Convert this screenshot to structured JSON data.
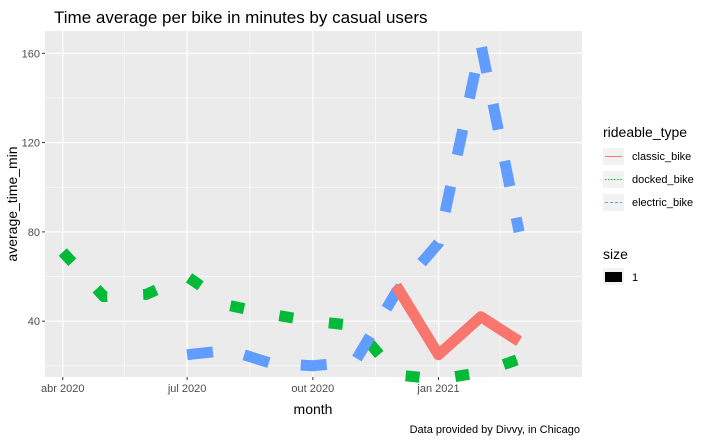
{
  "chart_data": {
    "type": "line",
    "title": "Time average per bike in minutes by casual users",
    "xlabel": "month",
    "ylabel": "average_time_min",
    "caption": "Data provided by Divvy, in Chicago",
    "x_ticks": [
      "abr 2020",
      "jul 2020",
      "out 2020",
      "jan 2021"
    ],
    "y_ticks": [
      40,
      80,
      120,
      160
    ],
    "xlim": [
      "2020-03-19",
      "2021-04-16"
    ],
    "ylim": [
      15,
      170
    ],
    "grid": true,
    "legend_placement": "right",
    "series": [
      {
        "name": "classic_bike",
        "color": "#F8766D",
        "dash": "solid",
        "points": [
          [
            "2020-12-01",
            56
          ],
          [
            "2021-01-01",
            25
          ],
          [
            "2021-02-01",
            42
          ],
          [
            "2021-03-01",
            31
          ]
        ]
      },
      {
        "name": "docked_bike",
        "color": "#00BA38",
        "dash": "dotted",
        "points": [
          [
            "2020-04-01",
            71
          ],
          [
            "2020-05-01",
            51
          ],
          [
            "2020-06-01",
            52
          ],
          [
            "2020-07-01",
            60
          ],
          [
            "2020-08-01",
            47
          ],
          [
            "2020-09-01",
            43
          ],
          [
            "2020-10-01",
            40
          ],
          [
            "2020-11-01",
            38
          ],
          [
            "2020-12-01",
            16
          ],
          [
            "2021-01-01",
            14
          ],
          [
            "2021-02-01",
            17
          ],
          [
            "2021-03-01",
            23
          ]
        ]
      },
      {
        "name": "electric_bike",
        "color": "#619CFF",
        "dash": "dashed",
        "points": [
          [
            "2020-07-01",
            25
          ],
          [
            "2020-08-01",
            27
          ],
          [
            "2020-09-01",
            21
          ],
          [
            "2020-10-01",
            20
          ],
          [
            "2020-11-01",
            22
          ],
          [
            "2020-12-01",
            53
          ],
          [
            "2021-01-01",
            75
          ],
          [
            "2021-02-01",
            164
          ],
          [
            "2021-03-01",
            80
          ]
        ]
      }
    ],
    "legend": {
      "title": "rideable_type",
      "items": [
        "classic_bike",
        "docked_bike",
        "electric_bike"
      ]
    },
    "size_legend": {
      "title": "size",
      "items": [
        "1"
      ]
    }
  }
}
